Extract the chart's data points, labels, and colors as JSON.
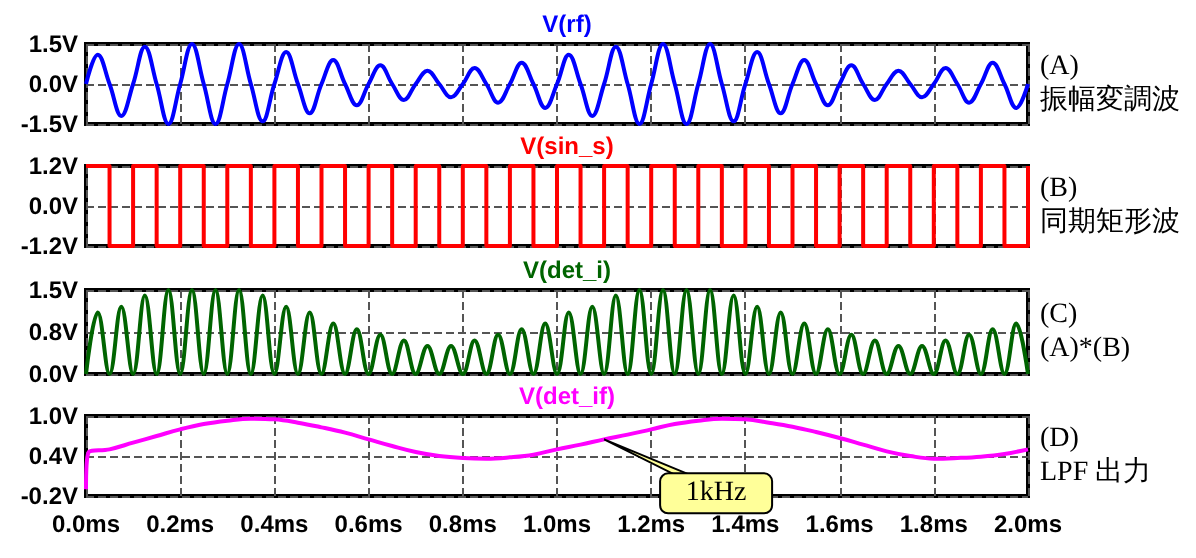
{
  "chart_data": [
    {
      "type": "line",
      "title": "V(rf)",
      "annotations": [
        "(A)",
        "振幅変調波"
      ],
      "xlim": [
        0,
        2
      ],
      "xticks": [
        0,
        0.2,
        0.4,
        0.6,
        0.8,
        1,
        1.2,
        1.4,
        1.6,
        1.8,
        2
      ],
      "ylim": [
        -1.5,
        1.5
      ],
      "yticks": [
        {
          "value": -1.5,
          "label": "-1.5V"
        },
        {
          "value": 0,
          "label": "0.0V"
        },
        {
          "value": 1.5,
          "label": "1.5V"
        }
      ],
      "grid": true,
      "tick_labels": "y",
      "x": [
        0,
        0.025,
        0.05,
        0.075,
        0.1,
        0.125,
        0.15,
        0.175,
        0.2,
        0.225,
        0.25,
        0.275,
        0.3,
        0.325,
        0.35,
        0.375,
        0.4,
        0.425,
        0.45,
        0.475,
        0.5,
        0.525,
        0.55,
        0.575,
        0.6,
        0.625,
        0.65,
        0.675,
        0.7,
        0.725,
        0.75,
        0.775,
        0.8,
        0.825,
        0.85,
        0.875,
        0.9,
        0.925,
        0.95,
        0.975,
        1,
        1.025,
        1.05,
        1.075,
        1.1,
        1.125,
        1.15,
        1.175,
        1.2,
        1.225,
        1.25,
        1.275,
        1.3,
        1.325,
        1.35,
        1.375,
        1.4,
        1.425,
        1.45,
        1.475,
        1.5,
        1.525,
        1.55,
        1.575,
        1.6,
        1.625,
        1.65,
        1.675,
        1.7,
        1.725,
        1.75,
        1.775,
        1.8,
        1.825,
        1.85,
        1.875,
        1.9,
        1.925,
        1.95,
        1.975,
        2
      ],
      "series": [
        {
          "color": "#0000ff",
          "values": [
            0,
            1.1,
            0,
            -1.2,
            0,
            1.4,
            0,
            -1.5,
            0,
            1.5,
            0,
            -1.5,
            0,
            1.5,
            0,
            -1.4,
            0,
            1.2,
            0,
            -1.1,
            0,
            0.9,
            0,
            -0.8,
            0,
            0.7,
            0,
            -0.6,
            0,
            0.5,
            0,
            -0.5,
            0,
            0.6,
            0,
            -0.7,
            0,
            0.8,
            0,
            -0.9,
            0,
            1.1,
            0,
            -1.2,
            0,
            1.4,
            0,
            -1.5,
            0,
            1.5,
            0,
            -1.5,
            0,
            1.5,
            0,
            -1.4,
            0,
            1.2,
            0,
            -1.1,
            0,
            0.9,
            0,
            -0.8,
            0,
            0.7,
            0,
            -0.6,
            0,
            0.5,
            0,
            -0.5,
            0,
            0.6,
            0,
            -0.7,
            0,
            0.8,
            0,
            -0.9,
            0
          ]
        }
      ]
    },
    {
      "type": "step",
      "title": "V(sin_s)",
      "annotations": [
        "(B)",
        "同期矩形波"
      ],
      "xlim": [
        0,
        2
      ],
      "xticks": [
        0,
        0.2,
        0.4,
        0.6,
        0.8,
        1,
        1.2,
        1.4,
        1.6,
        1.8,
        2
      ],
      "ylim": [
        -1.2,
        1.2
      ],
      "yticks": [
        {
          "value": -1.2,
          "label": "-1.2V"
        },
        {
          "value": 0,
          "label": "0.0V"
        },
        {
          "value": 1.2,
          "label": "1.2V"
        }
      ],
      "grid": true,
      "tick_labels": "y",
      "x": [
        0,
        0.05,
        0.1,
        0.15,
        0.2,
        0.25,
        0.3,
        0.35,
        0.4,
        0.45,
        0.5,
        0.55,
        0.6,
        0.65,
        0.7,
        0.75,
        0.8,
        0.85,
        0.9,
        0.95,
        1,
        1.05,
        1.1,
        1.15,
        1.2,
        1.25,
        1.3,
        1.35,
        1.4,
        1.45,
        1.5,
        1.55,
        1.6,
        1.65,
        1.7,
        1.75,
        1.8,
        1.85,
        1.9,
        1.95,
        2
      ],
      "series": [
        {
          "color": "#ff0000",
          "values": [
            1.2,
            -1.2,
            1.2,
            -1.2,
            1.2,
            -1.2,
            1.2,
            -1.2,
            1.2,
            -1.2,
            1.2,
            -1.2,
            1.2,
            -1.2,
            1.2,
            -1.2,
            1.2,
            -1.2,
            1.2,
            -1.2,
            1.2,
            -1.2,
            1.2,
            -1.2,
            1.2,
            -1.2,
            1.2,
            -1.2,
            1.2,
            -1.2,
            1.2,
            -1.2,
            1.2,
            -1.2,
            1.2,
            -1.2,
            1.2,
            -1.2,
            1.2,
            -1.2,
            1.2
          ]
        }
      ]
    },
    {
      "type": "line",
      "title": "V(det_i)",
      "annotations": [
        "(C)",
        "(A)*(B)"
      ],
      "xlim": [
        0,
        2
      ],
      "xticks": [
        0,
        0.2,
        0.4,
        0.6,
        0.8,
        1,
        1.2,
        1.4,
        1.6,
        1.8,
        2
      ],
      "ylim": [
        0,
        1.5
      ],
      "yticks": [
        {
          "value": 0,
          "label": "0.0V"
        },
        {
          "value": 0.75,
          "label": "0.8V"
        },
        {
          "value": 1.5,
          "label": "1.5V"
        }
      ],
      "grid": true,
      "tick_labels": "y",
      "x": [
        0,
        0.025,
        0.05,
        0.075,
        0.1,
        0.125,
        0.15,
        0.175,
        0.2,
        0.225,
        0.25,
        0.275,
        0.3,
        0.325,
        0.35,
        0.375,
        0.4,
        0.425,
        0.45,
        0.475,
        0.5,
        0.525,
        0.55,
        0.575,
        0.6,
        0.625,
        0.65,
        0.675,
        0.7,
        0.725,
        0.75,
        0.775,
        0.8,
        0.825,
        0.85,
        0.875,
        0.9,
        0.925,
        0.95,
        0.975,
        1,
        1.025,
        1.05,
        1.075,
        1.1,
        1.125,
        1.15,
        1.175,
        1.2,
        1.225,
        1.25,
        1.275,
        1.3,
        1.325,
        1.35,
        1.375,
        1.4,
        1.425,
        1.45,
        1.475,
        1.5,
        1.525,
        1.55,
        1.575,
        1.6,
        1.625,
        1.65,
        1.675,
        1.7,
        1.725,
        1.75,
        1.775,
        1.8,
        1.825,
        1.85,
        1.875,
        1.9,
        1.925,
        1.95,
        1.975,
        2
      ],
      "series": [
        {
          "color": "#006400",
          "values": [
            0,
            1.1,
            0,
            1.2,
            0,
            1.4,
            0,
            1.5,
            0,
            1.5,
            0,
            1.5,
            0,
            1.5,
            0,
            1.4,
            0,
            1.2,
            0,
            1.1,
            0,
            0.9,
            0,
            0.8,
            0,
            0.7,
            0,
            0.6,
            0,
            0.5,
            0,
            0.5,
            0,
            0.6,
            0,
            0.7,
            0,
            0.8,
            0,
            0.9,
            0,
            1.1,
            0,
            1.2,
            0,
            1.4,
            0,
            1.5,
            0,
            1.5,
            0,
            1.5,
            0,
            1.5,
            0,
            1.4,
            0,
            1.2,
            0,
            1.1,
            0,
            0.9,
            0,
            0.8,
            0,
            0.7,
            0,
            0.6,
            0,
            0.5,
            0,
            0.5,
            0,
            0.6,
            0,
            0.7,
            0,
            0.8,
            0,
            0.9,
            0
          ]
        }
      ]
    },
    {
      "type": "line",
      "title": "V(det_if)",
      "annotations": [
        "(D)",
        "LPF 出力",
        {
          "text": "1kHz",
          "x": 1.1,
          "y": 0.65
        }
      ],
      "xlim": [
        0,
        2
      ],
      "xticks": [
        {
          "value": 0,
          "label": "0.0ms"
        },
        {
          "value": 0.2,
          "label": "0.2ms"
        },
        {
          "value": 0.4,
          "label": "0.4ms"
        },
        {
          "value": 0.6,
          "label": "0.6ms"
        },
        {
          "value": 0.8,
          "label": "0.8ms"
        },
        {
          "value": 1,
          "label": "1.0ms"
        },
        {
          "value": 1.2,
          "label": "1.2ms"
        },
        {
          "value": 1.4,
          "label": "1.4ms"
        },
        {
          "value": 1.6,
          "label": "1.6ms"
        },
        {
          "value": 1.8,
          "label": "1.8ms"
        },
        {
          "value": 2,
          "label": "2.0ms"
        }
      ],
      "ylim": [
        -0.2,
        1.0
      ],
      "yticks": [
        {
          "value": -0.2,
          "label": "-0.2V"
        },
        {
          "value": 0.4,
          "label": "0.4V"
        },
        {
          "value": 1.0,
          "label": "1.0V"
        }
      ],
      "grid": true,
      "x": [
        0,
        0.005,
        0.05,
        0.1,
        0.15,
        0.2,
        0.25,
        0.3,
        0.35,
        0.4,
        0.45,
        0.5,
        0.55,
        0.6,
        0.65,
        0.7,
        0.75,
        0.8,
        0.85,
        0.9,
        0.95,
        1,
        1.05,
        1.1,
        1.15,
        1.2,
        1.25,
        1.3,
        1.35,
        1.4,
        1.45,
        1.5,
        1.55,
        1.6,
        1.65,
        1.7,
        1.75,
        1.8,
        1.85,
        1.9,
        1.95,
        2
      ],
      "series": [
        {
          "color": "#ff00ff",
          "values": [
            -0.1,
            0.45,
            0.5,
            0.6,
            0.7,
            0.8,
            0.88,
            0.93,
            0.96,
            0.95,
            0.9,
            0.83,
            0.75,
            0.65,
            0.55,
            0.46,
            0.4,
            0.37,
            0.36,
            0.38,
            0.42,
            0.5,
            0.57,
            0.65,
            0.72,
            0.8,
            0.88,
            0.93,
            0.96,
            0.95,
            0.9,
            0.84,
            0.76,
            0.67,
            0.57,
            0.47,
            0.4,
            0.36,
            0.37,
            0.39,
            0.43,
            0.5
          ]
        }
      ]
    }
  ]
}
